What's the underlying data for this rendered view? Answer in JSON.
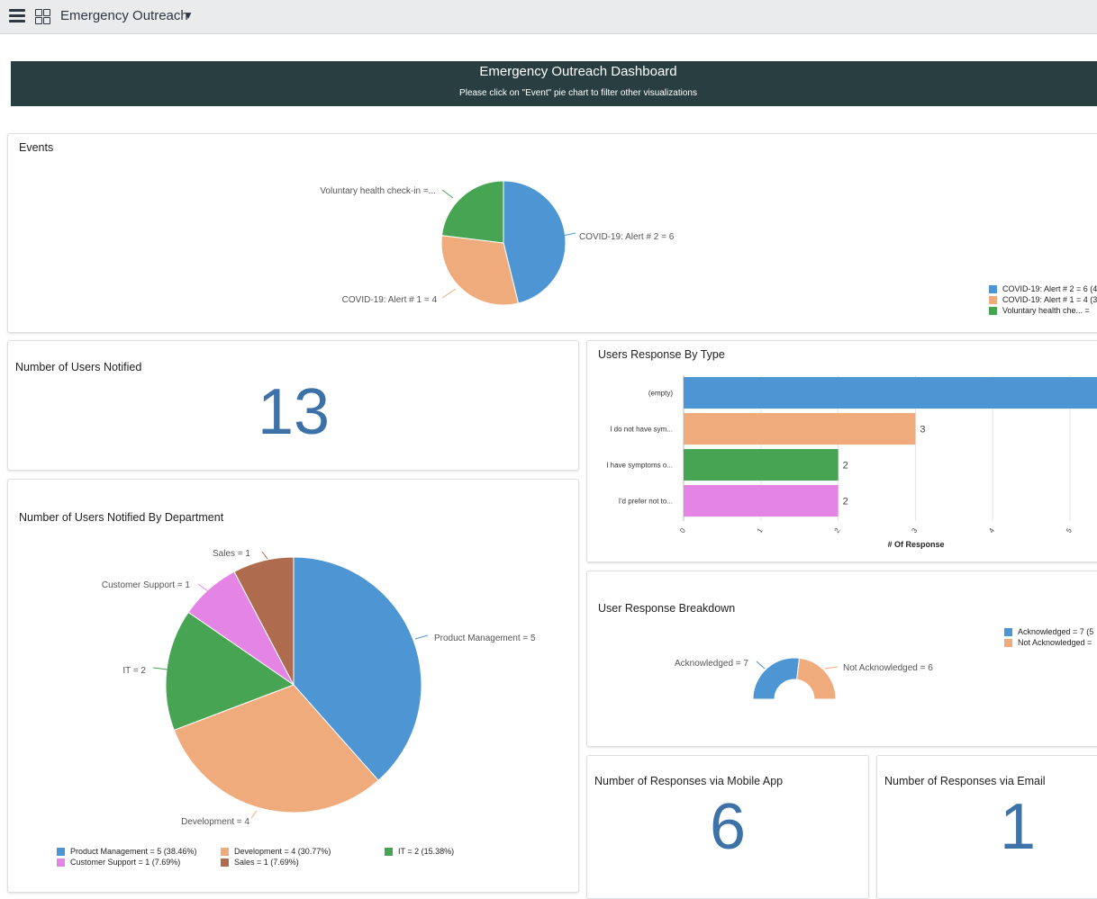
{
  "header": {
    "app_title": "Emergency Outreach",
    "menu_icon": "hamburger-icon",
    "apps_icon": "grid-icon",
    "dropdown_icon": "caret-down-icon"
  },
  "banner": {
    "title": "Emergency Outreach Dashboard",
    "subtitle": "Please click on \"Event\" pie chart to filter other visualizations"
  },
  "events": {
    "title": "Events",
    "labels": [
      "COVID-19: Alert # 2 = 6",
      "COVID-19: Alert # 1 = 4",
      "Voluntary health check-in =..."
    ],
    "legend": [
      "COVID-19: Alert # 2 = 6 (4",
      "COVID-19: Alert # 1 = 4 (3",
      "Voluntary health che... ="
    ]
  },
  "users_notified": {
    "title": "Number of Users Notified",
    "value": "13"
  },
  "by_department": {
    "title": "Number of Users Notified By Department",
    "labels": [
      "Product Management = 5",
      "Development = 4",
      "IT = 2",
      "Customer Support = 1",
      "Sales = 1"
    ],
    "legend": [
      "Product Management = 5 (38.46%)",
      "Development = 4 (30.77%)",
      "IT = 2 (15.38%)",
      "Customer Support = 1 (7.69%)",
      "Sales = 1 (7.69%)"
    ]
  },
  "response_by_type": {
    "title": "Users Response By Type",
    "xlabel": "# Of Response",
    "categories": [
      "(empty)",
      "I do not have sym...",
      "I have symptoms o...",
      "I'd prefer not to..."
    ],
    "value_labels": [
      "",
      "3",
      "2",
      "2"
    ],
    "ticks": [
      "0",
      "1",
      "2",
      "3",
      "4",
      "5"
    ]
  },
  "response_breakdown": {
    "title": "User Response Breakdown",
    "labels": [
      "Acknowledged = 7",
      "Not Acknowledged = 6"
    ],
    "legend": [
      "Acknowledged = 7 (5",
      "Not Acknowledged ="
    ]
  },
  "mobile": {
    "title": "Number of Responses via Mobile App",
    "value": "6"
  },
  "email": {
    "title": "Number of Responses via Email",
    "value": "1"
  },
  "colors": {
    "blue": "#4e95d3",
    "orange": "#f0ab7c",
    "green": "#47a452",
    "pink": "#e484e5",
    "brown": "#af6b4e",
    "banner": "#293e40"
  },
  "chart_data": [
    {
      "type": "pie",
      "categories": [
        "COVID-19: Alert # 2",
        "COVID-19: Alert # 1",
        "Voluntary health check-in"
      ],
      "values": [
        6,
        4,
        3
      ],
      "title": "Events"
    },
    {
      "type": "pie",
      "categories": [
        "Product Management",
        "Development",
        "IT",
        "Customer Support",
        "Sales"
      ],
      "values": [
        5,
        4,
        2,
        1,
        1
      ],
      "title": "Number of Users Notified By Department"
    },
    {
      "type": "bar",
      "orientation": "horizontal",
      "categories": [
        "(empty)",
        "I do not have sym...",
        "I have symptoms o...",
        "I'd prefer not to..."
      ],
      "values": [
        6,
        3,
        2,
        2
      ],
      "title": "Users Response By Type",
      "xlabel": "# Of Response",
      "xlim": [
        0,
        6
      ]
    },
    {
      "type": "pie",
      "style": "semi-donut",
      "categories": [
        "Acknowledged",
        "Not Acknowledged"
      ],
      "values": [
        7,
        6
      ],
      "title": "User Response Breakdown"
    }
  ]
}
